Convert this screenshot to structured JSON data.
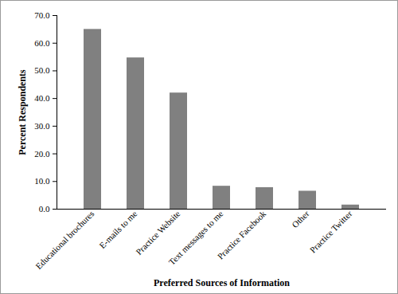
{
  "chart_data": {
    "type": "bar",
    "x_label": "Preferred Sources of Information",
    "y_label": "Percent Respondents",
    "categories": [
      "Educational brochures",
      "E-mails to me",
      "Practice Website",
      "Text messages to me",
      "Practice Facebook",
      "Other",
      "Practice Twitter"
    ],
    "values": [
      65.0,
      54.7,
      42.0,
      8.3,
      7.8,
      6.5,
      1.5
    ],
    "color": "#808080",
    "ylim": [
      0,
      70
    ],
    "yticks": [
      {
        "value": 0,
        "label": "0.0"
      },
      {
        "value": 10,
        "label": "10.0"
      },
      {
        "value": 20,
        "label": "20.0"
      },
      {
        "value": 30,
        "label": "30.0"
      },
      {
        "value": 40,
        "label": "40.0"
      },
      {
        "value": 50,
        "label": "50.0"
      },
      {
        "value": 60,
        "label": "60.0"
      },
      {
        "value": 70,
        "label": "70.0"
      }
    ],
    "grid": false
  }
}
